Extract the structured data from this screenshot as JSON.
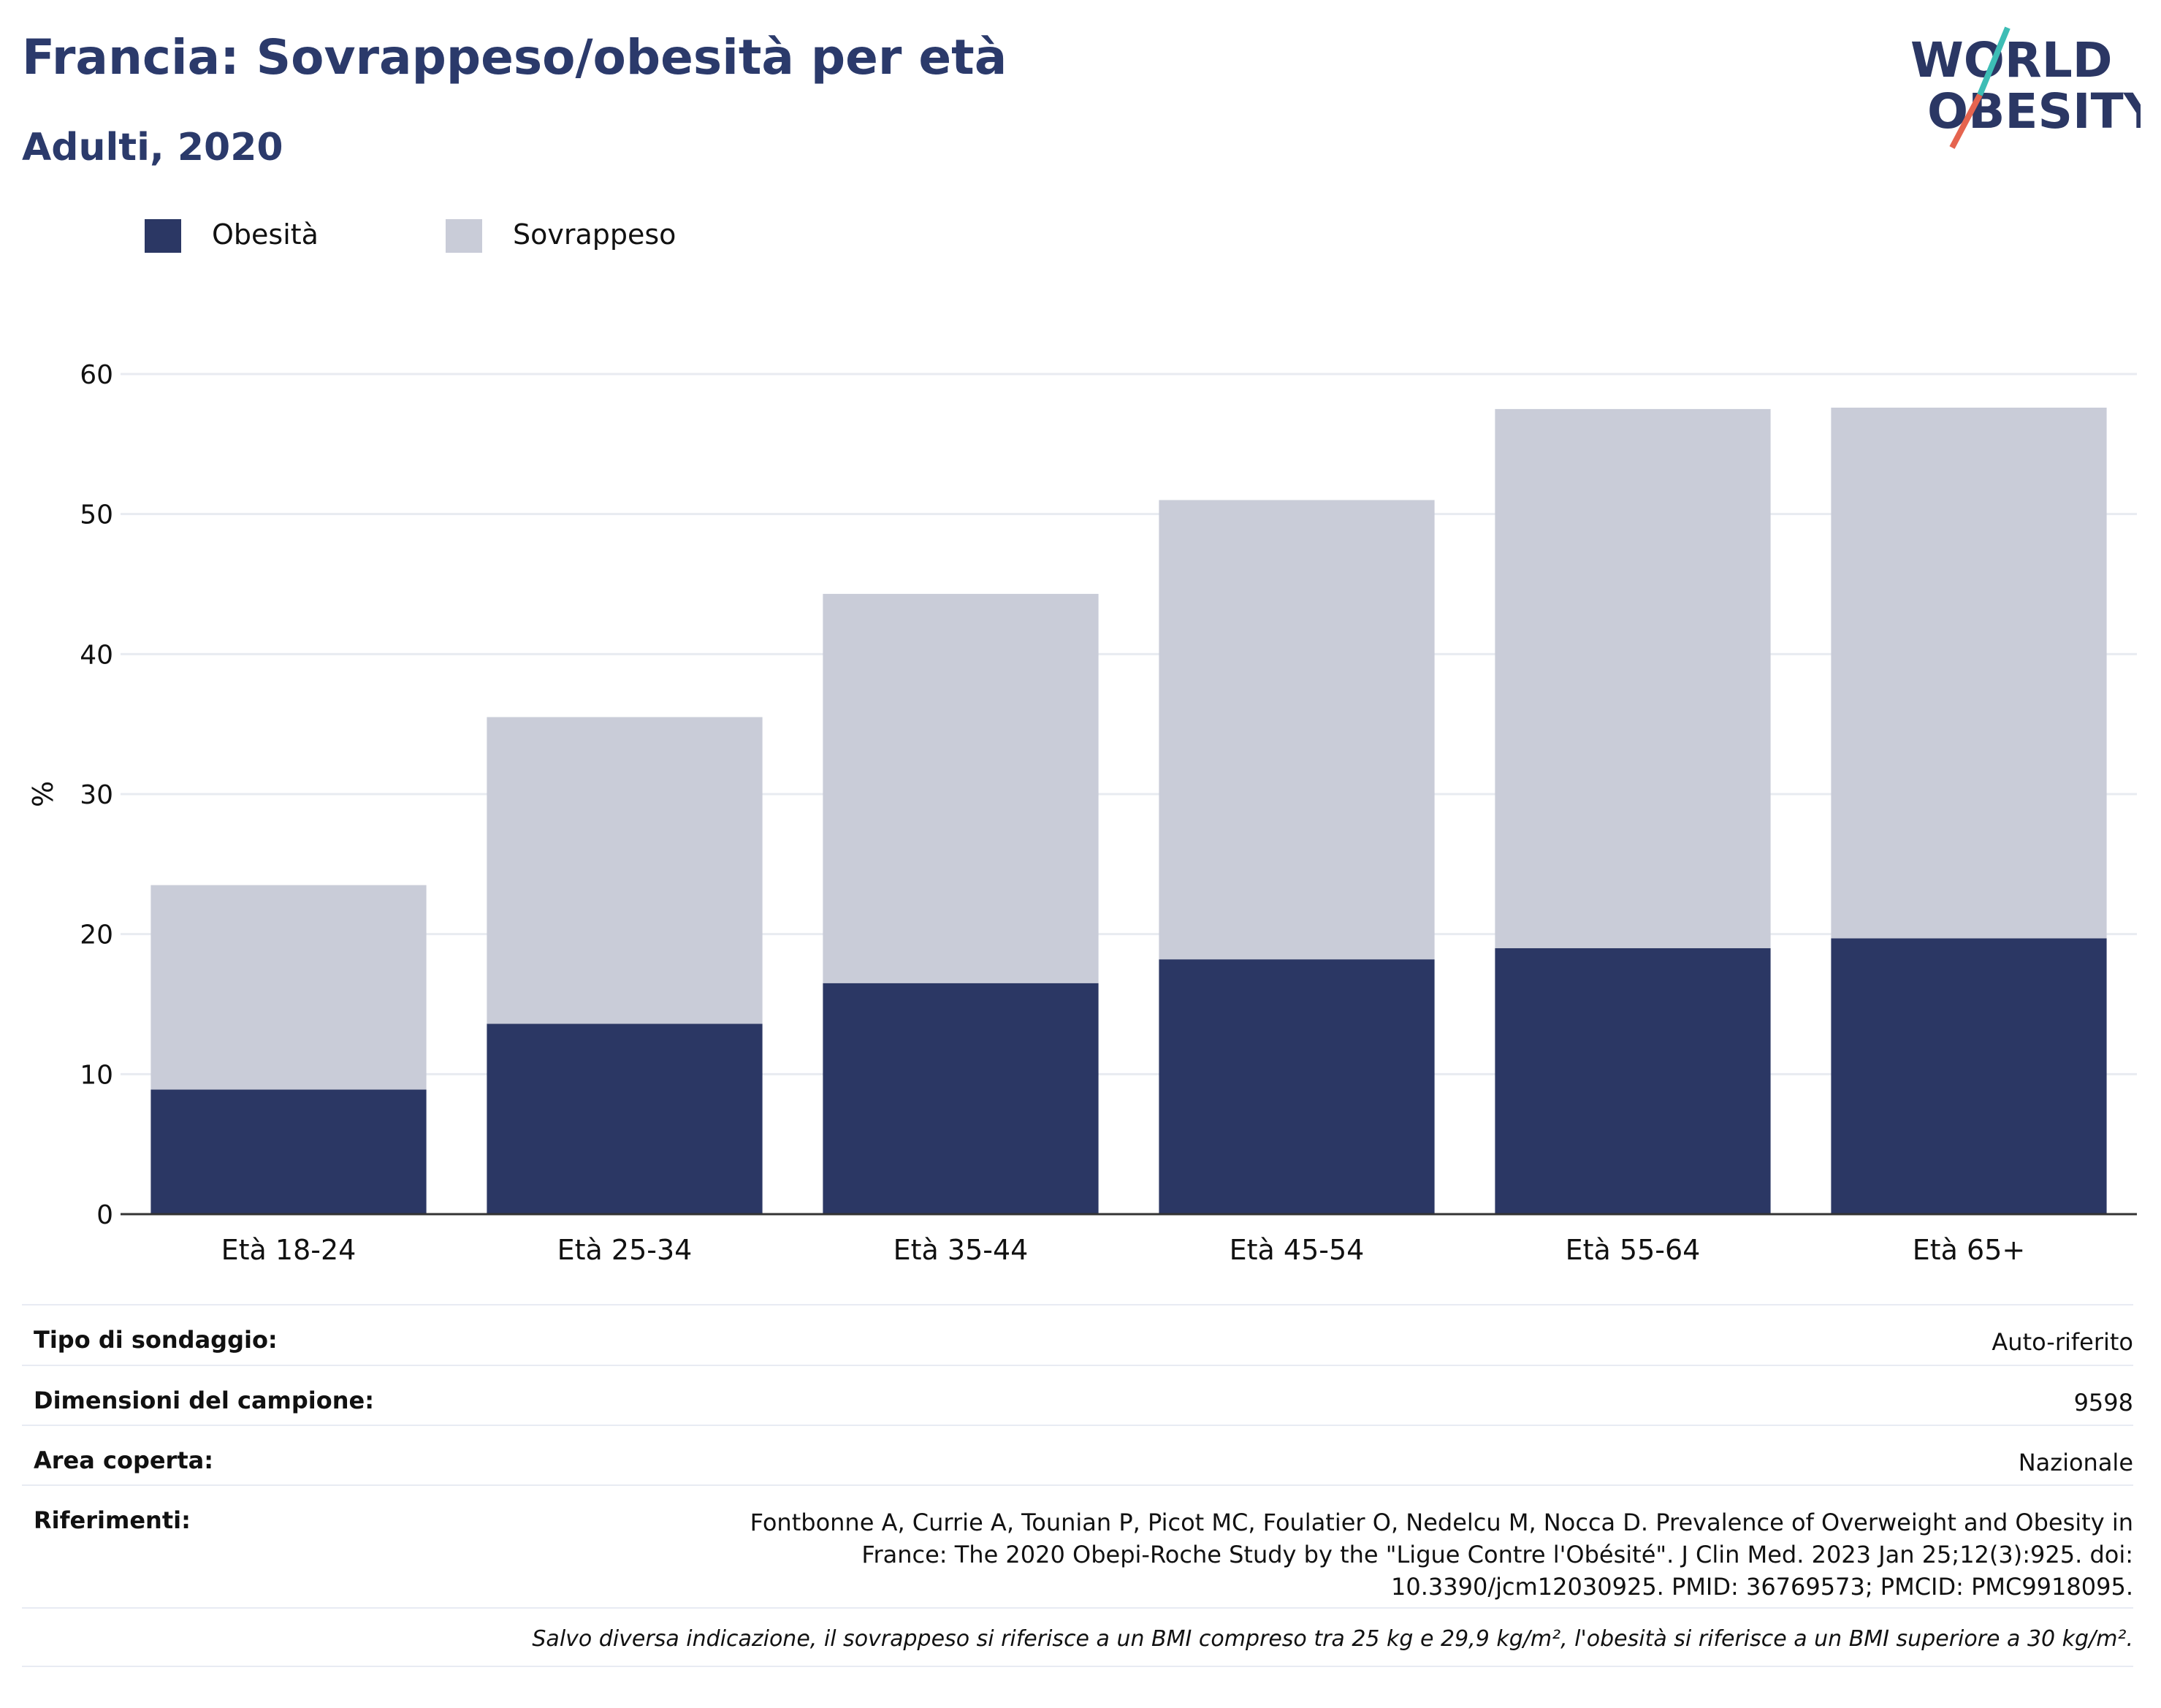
{
  "header": {
    "title": "Francia: Sovrappeso/obesità per età",
    "subtitle": "Adulti, 2020",
    "logo_line1": "WORLD",
    "logo_line2": "OBESITY"
  },
  "legend": [
    {
      "label": "Obesità",
      "color": "#2b3764"
    },
    {
      "label": "Sovrappeso",
      "color": "#c9ccd8"
    }
  ],
  "chart_data": {
    "type": "bar",
    "stacked": true,
    "categories": [
      "Età 18-24",
      "Età 25-34",
      "Età 35-44",
      "Età 45-54",
      "Età 55-64",
      "Età 65+"
    ],
    "series": [
      {
        "name": "Obesità",
        "values": [
          8.9,
          13.6,
          16.5,
          18.2,
          19.0,
          19.7
        ],
        "color": "#2b3764"
      },
      {
        "name": "Sovrappeso",
        "values": [
          14.6,
          21.9,
          27.8,
          32.8,
          38.5,
          37.9
        ],
        "color": "#c9ccd8"
      }
    ],
    "xlabel": "",
    "ylabel": "%",
    "ylim": [
      0,
      60
    ],
    "yticks": [
      0,
      10,
      20,
      30,
      40,
      50,
      60
    ],
    "grid": true,
    "legend_position": "top-left"
  },
  "info": {
    "rows": [
      {
        "label": "Tipo di sondaggio:",
        "value": "Auto-riferito"
      },
      {
        "label": "Dimensioni del campione:",
        "value": "9598"
      },
      {
        "label": "Area coperta:",
        "value": "Nazionale"
      },
      {
        "label": "Riferimenti:",
        "value": "Fontbonne A, Currie A, Tounian P, Picot MC, Foulatier O, Nedelcu M, Nocca D. Prevalence of Overweight and Obesity in France: The 2020 Obepi-Roche Study by the \"Ligue Contre l'Obésité\". J Clin Med. 2023 Jan 25;12(3):925. doi: 10.3390/jcm12030925. PMID: 36769573; PMCID: PMC9918095."
      }
    ],
    "note": "Salvo diversa indicazione, il sovrappeso si riferisce a un BMI compreso tra 25 kg e 29,9 kg/m², l'obesità si riferisce a un BMI superiore a 30 kg/m²."
  }
}
